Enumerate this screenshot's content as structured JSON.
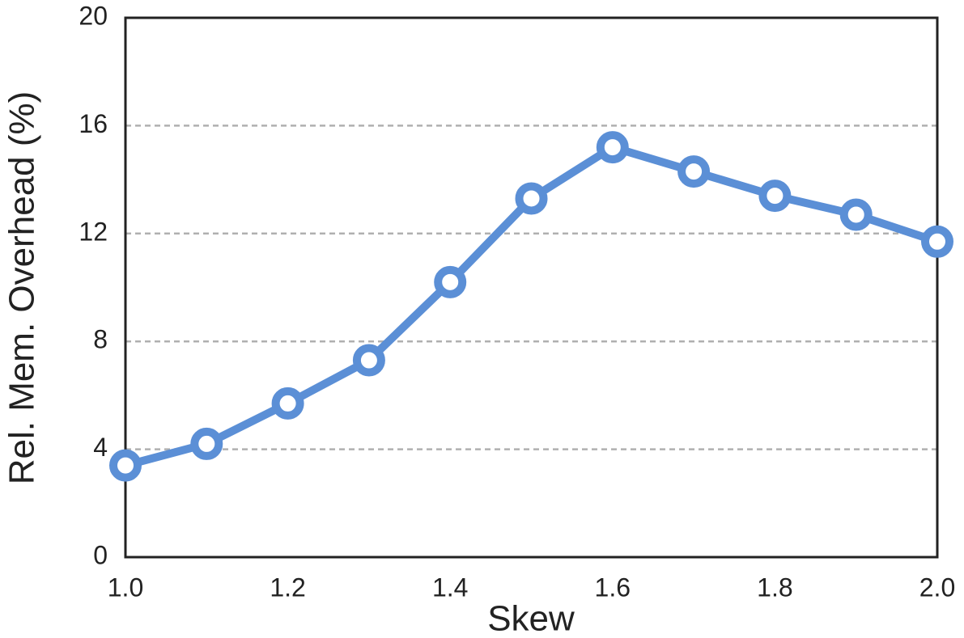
{
  "chart_data": {
    "type": "line",
    "x_label": "Skew",
    "y_label": "Rel. Mem. Overhead (%)",
    "x": [
      1.0,
      1.1,
      1.2,
      1.3,
      1.4,
      1.5,
      1.6,
      1.7,
      1.8,
      1.9,
      2.0
    ],
    "series": [
      {
        "color": "#5b8fd6",
        "values": [
          3.4,
          4.2,
          5.7,
          7.3,
          10.2,
          13.3,
          15.2,
          14.3,
          13.4,
          12.7,
          11.7
        ]
      }
    ],
    "xlim": [
      1,
      2
    ],
    "xticks": [
      {
        "value": 1,
        "label": "1.0"
      },
      1.2,
      1.4,
      1.6,
      1.8,
      {
        "value": 2,
        "label": "2.0"
      }
    ],
    "ylim": [
      0,
      20
    ],
    "yticks": [
      0,
      4,
      8,
      12,
      16,
      20
    ],
    "grid": true
  }
}
